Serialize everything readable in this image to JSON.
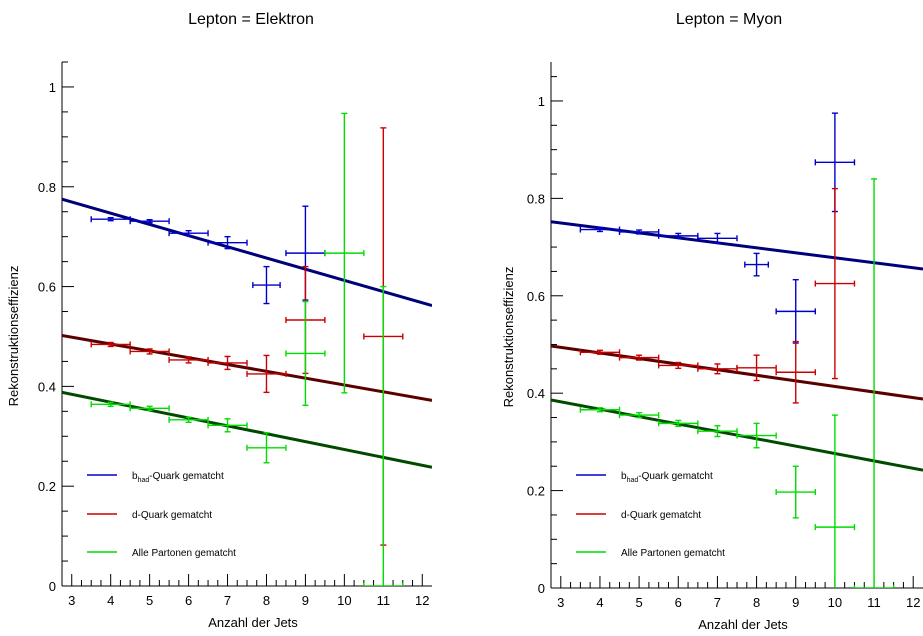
{
  "chart_data": [
    {
      "type": "scatter",
      "title": "Lepton = Elektron",
      "xlabel": "Anzahl der Jets",
      "ylabel": "Rekonstruktionseffizienz",
      "xlim": [
        2.75,
        12.25
      ],
      "ylim": [
        0,
        1.05
      ],
      "x_ticks": [
        3,
        4,
        5,
        6,
        7,
        8,
        9,
        10,
        11,
        12
      ],
      "y_ticks": [
        0,
        0.2,
        0.4,
        0.6,
        0.8,
        1
      ],
      "x_tick_labels": [
        "3",
        "4",
        "5",
        "6",
        "7",
        "8",
        "9",
        "10",
        "11",
        "12"
      ],
      "y_tick_labels": [
        "0",
        "0.2",
        "0.4",
        "0.6",
        "0.8",
        "1"
      ],
      "legend_position": "lower-left",
      "series": [
        {
          "name": "b_had-Quark gematcht",
          "color": "#0000cc",
          "fit_color": "#00007a",
          "fit": {
            "x": [
              2.75,
              12.25
            ],
            "y": [
              0.775,
              0.562
            ]
          },
          "points": [
            {
              "x": 4,
              "y": 0.735,
              "xerr": 0.5,
              "yerr": 0.003
            },
            {
              "x": 5,
              "y": 0.731,
              "xerr": 0.5,
              "yerr": 0.003
            },
            {
              "x": 6,
              "y": 0.707,
              "xerr": 0.5,
              "yerr": 0.005
            },
            {
              "x": 7,
              "y": 0.688,
              "xerr": 0.5,
              "yerr": 0.012
            },
            {
              "x": 8,
              "y": 0.603,
              "xerr": 0.35,
              "yerr": 0.037
            },
            {
              "x": 9,
              "y": 0.667,
              "xerr": 0.5,
              "yerr": 0.094
            }
          ]
        },
        {
          "name": "d-Quark gematcht",
          "color": "#cc0000",
          "fit_color": "#5a0000",
          "fit": {
            "x": [
              2.75,
              12.25
            ],
            "y": [
              0.502,
              0.372
            ]
          },
          "points": [
            {
              "x": 4,
              "y": 0.484,
              "xerr": 0.5,
              "yerr": 0.004
            },
            {
              "x": 5,
              "y": 0.47,
              "xerr": 0.5,
              "yerr": 0.005
            },
            {
              "x": 6,
              "y": 0.453,
              "xerr": 0.5,
              "yerr": 0.006
            },
            {
              "x": 7,
              "y": 0.447,
              "xerr": 0.5,
              "yerr": 0.013
            },
            {
              "x": 8,
              "y": 0.425,
              "xerr": 0.5,
              "yerr": 0.037
            },
            {
              "x": 9,
              "y": 0.533,
              "xerr": 0.5,
              "yerr": 0.107
            },
            {
              "x": 11,
              "y": 0.5,
              "xerr": 0.5,
              "yerr": 0.418
            }
          ]
        },
        {
          "name": "Alle Partonen gematcht",
          "color": "#00dd00",
          "fit_color": "#004a00",
          "fit": {
            "x": [
              2.75,
              12.25
            ],
            "y": [
              0.388,
              0.238
            ]
          },
          "points": [
            {
              "x": 4,
              "y": 0.364,
              "xerr": 0.5,
              "yerr": 0.004
            },
            {
              "x": 5,
              "y": 0.356,
              "xerr": 0.5,
              "yerr": 0.004
            },
            {
              "x": 6,
              "y": 0.333,
              "xerr": 0.5,
              "yerr": 0.005
            },
            {
              "x": 7,
              "y": 0.322,
              "xerr": 0.5,
              "yerr": 0.013
            },
            {
              "x": 8,
              "y": 0.277,
              "xerr": 0.5,
              "yerr": 0.03
            },
            {
              "x": 9,
              "y": 0.466,
              "xerr": 0.5,
              "yerr": 0.104
            },
            {
              "x": 10,
              "y": 0.667,
              "xerr": 0.5,
              "yerr": 0.28
            },
            {
              "x": 11,
              "y": 0.0,
              "xerr": 0.5,
              "yerr": 0.6
            }
          ]
        }
      ]
    },
    {
      "type": "scatter",
      "title": "Lepton = Myon",
      "xlabel": "Anzahl der Jets",
      "ylabel": "Rekonstruktionseffizienz",
      "xlim": [
        2.75,
        12.25
      ],
      "ylim": [
        0,
        1.08
      ],
      "x_ticks": [
        3,
        4,
        5,
        6,
        7,
        8,
        9,
        10,
        11,
        12
      ],
      "y_ticks": [
        0,
        0.2,
        0.4,
        0.6,
        0.8,
        1
      ],
      "x_tick_labels": [
        "3",
        "4",
        "5",
        "6",
        "7",
        "8",
        "9",
        "10",
        "11",
        "12"
      ],
      "y_tick_labels": [
        "0",
        "0.2",
        "0.4",
        "0.6",
        "0.8",
        "1"
      ],
      "legend_position": "lower-left",
      "series": [
        {
          "name": "b_had-Quark gematcht",
          "color": "#0000cc",
          "fit_color": "#00007a",
          "fit": {
            "x": [
              2.75,
              12.25
            ],
            "y": [
              0.752,
              0.655
            ]
          },
          "points": [
            {
              "x": 4,
              "y": 0.736,
              "xerr": 0.5,
              "yerr": 0.004
            },
            {
              "x": 5,
              "y": 0.731,
              "xerr": 0.5,
              "yerr": 0.004
            },
            {
              "x": 6,
              "y": 0.723,
              "xerr": 0.5,
              "yerr": 0.005
            },
            {
              "x": 7,
              "y": 0.718,
              "xerr": 0.5,
              "yerr": 0.01
            },
            {
              "x": 8,
              "y": 0.664,
              "xerr": 0.3,
              "yerr": 0.023
            },
            {
              "x": 9,
              "y": 0.568,
              "xerr": 0.5,
              "yerr": 0.065
            },
            {
              "x": 10,
              "y": 0.874,
              "xerr": 0.5,
              "yerr": 0.101
            }
          ]
        },
        {
          "name": "d-Quark gematcht",
          "color": "#cc0000",
          "fit_color": "#5a0000",
          "fit": {
            "x": [
              2.75,
              12.25
            ],
            "y": [
              0.497,
              0.388
            ]
          },
          "points": [
            {
              "x": 4,
              "y": 0.484,
              "xerr": 0.5,
              "yerr": 0.004
            },
            {
              "x": 5,
              "y": 0.473,
              "xerr": 0.5,
              "yerr": 0.005
            },
            {
              "x": 6,
              "y": 0.457,
              "xerr": 0.5,
              "yerr": 0.006
            },
            {
              "x": 7,
              "y": 0.45,
              "xerr": 0.5,
              "yerr": 0.01
            },
            {
              "x": 8,
              "y": 0.452,
              "xerr": 0.5,
              "yerr": 0.026
            },
            {
              "x": 9,
              "y": 0.443,
              "xerr": 0.5,
              "yerr": 0.063
            },
            {
              "x": 10,
              "y": 0.625,
              "xerr": 0.5,
              "yerr": 0.195
            }
          ]
        },
        {
          "name": "Alle Partonen gematcht",
          "color": "#00dd00",
          "fit_color": "#004a00",
          "fit": {
            "x": [
              2.75,
              12.25
            ],
            "y": [
              0.386,
              0.242
            ]
          },
          "points": [
            {
              "x": 4,
              "y": 0.366,
              "xerr": 0.5,
              "yerr": 0.004
            },
            {
              "x": 5,
              "y": 0.355,
              "xerr": 0.5,
              "yerr": 0.005
            },
            {
              "x": 6,
              "y": 0.338,
              "xerr": 0.5,
              "yerr": 0.006
            },
            {
              "x": 7,
              "y": 0.322,
              "xerr": 0.5,
              "yerr": 0.011
            },
            {
              "x": 8,
              "y": 0.313,
              "xerr": 0.5,
              "yerr": 0.025
            },
            {
              "x": 9,
              "y": 0.197,
              "xerr": 0.5,
              "yerr": 0.053
            },
            {
              "x": 10,
              "y": 0.125,
              "xerr": 0.5,
              "yerr": 0.23
            },
            {
              "x": 11,
              "y": 0.0,
              "xerr": 0.5,
              "yerr": 0.84
            }
          ]
        }
      ]
    }
  ]
}
